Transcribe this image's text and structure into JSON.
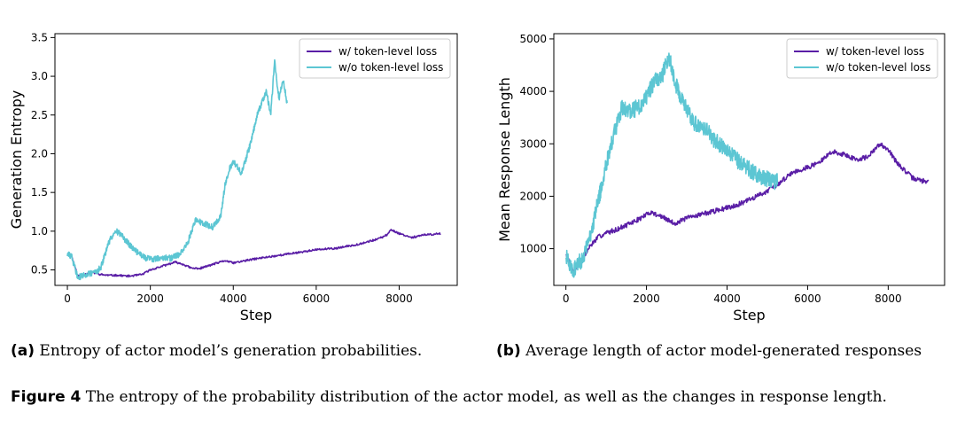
{
  "colors": {
    "with": "#5a1ea6",
    "without": "#5cc6d3"
  },
  "chart_data": [
    {
      "type": "line",
      "id": "a",
      "xlabel": "Step",
      "ylabel": "Generation Entropy",
      "xlim": [
        -300,
        9400
      ],
      "ylim": [
        0.3,
        3.55
      ],
      "xticks": [
        0,
        2000,
        4000,
        6000,
        8000
      ],
      "yticks": [
        0.5,
        1.0,
        1.5,
        2.0,
        2.5,
        3.0,
        3.5
      ],
      "ytick_labels": [
        "0.5",
        "1.0",
        "1.5",
        "2.0",
        "2.5",
        "3.0",
        "3.5"
      ],
      "legend": "top-right",
      "series": [
        {
          "name": "w/ token-level loss",
          "color_key": "with",
          "noise": 0.012,
          "seed": 11,
          "x": [
            0,
            100,
            250,
            400,
            600,
            800,
            1000,
            1200,
            1500,
            1800,
            2000,
            2300,
            2600,
            2800,
            3000,
            3200,
            3500,
            3800,
            4000,
            4500,
            5000,
            5500,
            6000,
            6500,
            7000,
            7500,
            7700,
            7800,
            8000,
            8300,
            8600,
            9000
          ],
          "y": [
            0.7,
            0.68,
            0.42,
            0.44,
            0.47,
            0.44,
            0.43,
            0.43,
            0.42,
            0.44,
            0.5,
            0.55,
            0.6,
            0.57,
            0.52,
            0.52,
            0.57,
            0.62,
            0.59,
            0.64,
            0.68,
            0.72,
            0.76,
            0.78,
            0.83,
            0.9,
            0.95,
            1.02,
            0.97,
            0.92,
            0.95,
            0.97
          ]
        },
        {
          "name": "w/o token-level loss",
          "color_key": "without",
          "noise": 0.04,
          "seed": 29,
          "x": [
            0,
            100,
            250,
            400,
            600,
            800,
            1000,
            1150,
            1300,
            1500,
            1700,
            1900,
            2100,
            2300,
            2500,
            2700,
            2900,
            3100,
            3300,
            3500,
            3700,
            3800,
            3900,
            4000,
            4200,
            4400,
            4600,
            4800,
            4900,
            5000,
            5100,
            5200,
            5300
          ],
          "y": [
            0.7,
            0.68,
            0.4,
            0.43,
            0.46,
            0.52,
            0.85,
            1.02,
            0.95,
            0.82,
            0.72,
            0.65,
            0.64,
            0.66,
            0.65,
            0.7,
            0.85,
            1.15,
            1.1,
            1.05,
            1.2,
            1.6,
            1.8,
            1.9,
            1.75,
            2.1,
            2.55,
            2.8,
            2.5,
            3.2,
            2.7,
            2.95,
            2.65
          ]
        }
      ]
    },
    {
      "type": "line",
      "id": "b",
      "xlabel": "Step",
      "ylabel": "Mean Response Length",
      "xlim": [
        -300,
        9400
      ],
      "ylim": [
        300,
        5100
      ],
      "xticks": [
        0,
        2000,
        4000,
        6000,
        8000
      ],
      "yticks": [
        1000,
        2000,
        3000,
        4000,
        5000
      ],
      "ytick_labels": [
        "1000",
        "2000",
        "3000",
        "4000",
        "5000"
      ],
      "legend": "top-right",
      "series": [
        {
          "name": "w/ token-level loss",
          "color_key": "with",
          "noise": 45,
          "seed": 7,
          "x": [
            0,
            100,
            200,
            400,
            600,
            800,
            1000,
            1300,
            1600,
            1900,
            2100,
            2400,
            2700,
            3000,
            3300,
            3600,
            4000,
            4300,
            4600,
            5000,
            5300,
            5600,
            6000,
            6300,
            6600,
            6900,
            7200,
            7500,
            7800,
            8000,
            8200,
            8400,
            8600,
            8800,
            9000
          ],
          "y": [
            900,
            700,
            580,
            780,
            1050,
            1220,
            1300,
            1380,
            1480,
            1600,
            1700,
            1600,
            1480,
            1580,
            1650,
            1700,
            1780,
            1850,
            1950,
            2100,
            2250,
            2450,
            2550,
            2650,
            2850,
            2800,
            2700,
            2750,
            3000,
            2900,
            2650,
            2500,
            2350,
            2300,
            2280
          ]
        },
        {
          "name": "w/o token-level loss",
          "color_key": "without",
          "noise": 160,
          "seed": 43,
          "x": [
            0,
            100,
            200,
            400,
            600,
            800,
            1000,
            1200,
            1400,
            1600,
            1800,
            2000,
            2200,
            2400,
            2550,
            2700,
            2900,
            3100,
            3300,
            3500,
            3700,
            3900,
            4100,
            4300,
            4500,
            4700,
            4900,
            5100,
            5250
          ],
          "y": [
            900,
            700,
            580,
            800,
            1200,
            1900,
            2600,
            3200,
            3700,
            3600,
            3700,
            3900,
            4200,
            4300,
            4700,
            4200,
            3800,
            3500,
            3300,
            3250,
            3050,
            2950,
            2800,
            2650,
            2550,
            2450,
            2350,
            2300,
            2300
          ]
        }
      ]
    }
  ],
  "captions": {
    "a_label": "(a)",
    "a_text": "Entropy of actor model’s generation probabilities.",
    "b_label": "(b)",
    "b_text": "Average length of actor model-generated responses",
    "figure_label": "Figure 4",
    "figure_text": "The entropy of the probability distribution of the actor model, as well as the changes in response length."
  }
}
